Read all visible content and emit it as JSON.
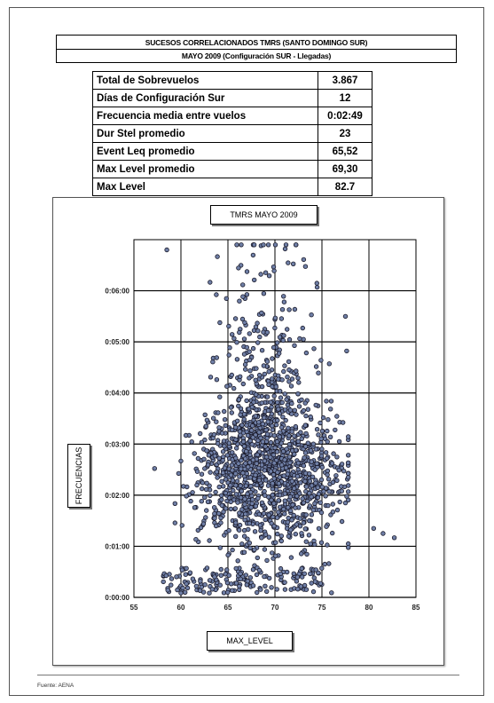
{
  "header": {
    "line1": "SUCESOS CORRELACIONADOS TMRS (SANTO DOMINGO SUR)",
    "line2": "MAYO 2009 (Configuración SUR - Llegadas)"
  },
  "summary": {
    "rows": [
      {
        "label": "Total de Sobrevuelos",
        "value": "3.867"
      },
      {
        "label": "Días de Configuración Sur",
        "value": "12"
      },
      {
        "label": "Frecuencia media entre vuelos",
        "value": "0:02:49"
      },
      {
        "label": "Dur Stel promedio",
        "value": "23"
      },
      {
        "label": "Event Leq promedio",
        "value": "65,52"
      },
      {
        "label": "Max Level promedio",
        "value": "69,30"
      },
      {
        "label": "Max Level",
        "value": "82.7"
      }
    ]
  },
  "chart_data": {
    "type": "scatter",
    "title": "TMRS MAYO 2009",
    "xlabel": "MAX_LEVEL",
    "ylabel": "FRECUENCIAS",
    "xlim": [
      55,
      85
    ],
    "ylim_seconds": [
      0,
      420
    ],
    "x_ticks": [
      "55",
      "60",
      "65",
      "70",
      "75",
      "80",
      "85"
    ],
    "y_ticks": [
      "0:00:00",
      "0:01:00",
      "0:02:00",
      "0:03:00",
      "0:04:00",
      "0:05:00",
      "0:06:00"
    ],
    "grid": true,
    "marker_color": "#6f7fa6",
    "marker_edge": "#1a1a2a",
    "point_count": 3867,
    "distribution": {
      "x_mean": 69.3,
      "x_sd": 3.6,
      "y_mode_seconds": 130,
      "outliers": [
        {
          "x": 80.5,
          "y_seconds": 81
        },
        {
          "x": 81.5,
          "y_seconds": 75
        },
        {
          "x": 82.7,
          "y_seconds": 70
        },
        {
          "x": 58.5,
          "y_seconds": 408
        },
        {
          "x": 77.5,
          "y_seconds": 330
        }
      ]
    }
  },
  "footer": {
    "source": "Fuente: AENA"
  }
}
